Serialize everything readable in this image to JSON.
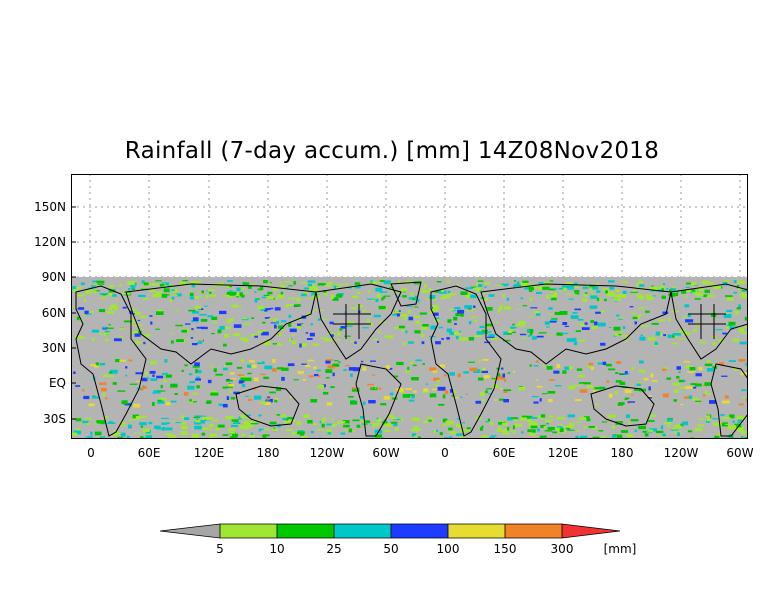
{
  "title": "Rainfall (7-day accum.) [mm] 14Z08Nov2018",
  "y_axis": {
    "labels": [
      "150N",
      "120N",
      "90N",
      "60N",
      "30N",
      "EQ",
      "30S"
    ]
  },
  "x_axis": {
    "labels": [
      "0",
      "60E",
      "120E",
      "180",
      "120W",
      "60W",
      "0",
      "60E",
      "120E",
      "180",
      "120W",
      "60W"
    ]
  },
  "colorbar": {
    "levels": [
      "5",
      "10",
      "25",
      "50",
      "100",
      "150",
      "300"
    ],
    "unit": "[mm]",
    "colors": [
      "#a6a6a6",
      "#a0e632",
      "#00c800",
      "#00c8c8",
      "#1e3cff",
      "#e6dc32",
      "#f08228",
      "#f03232"
    ]
  },
  "colors": {
    "ocean_background": "#b4b4b4",
    "coastline": "#000000",
    "grid": "#999999"
  }
}
